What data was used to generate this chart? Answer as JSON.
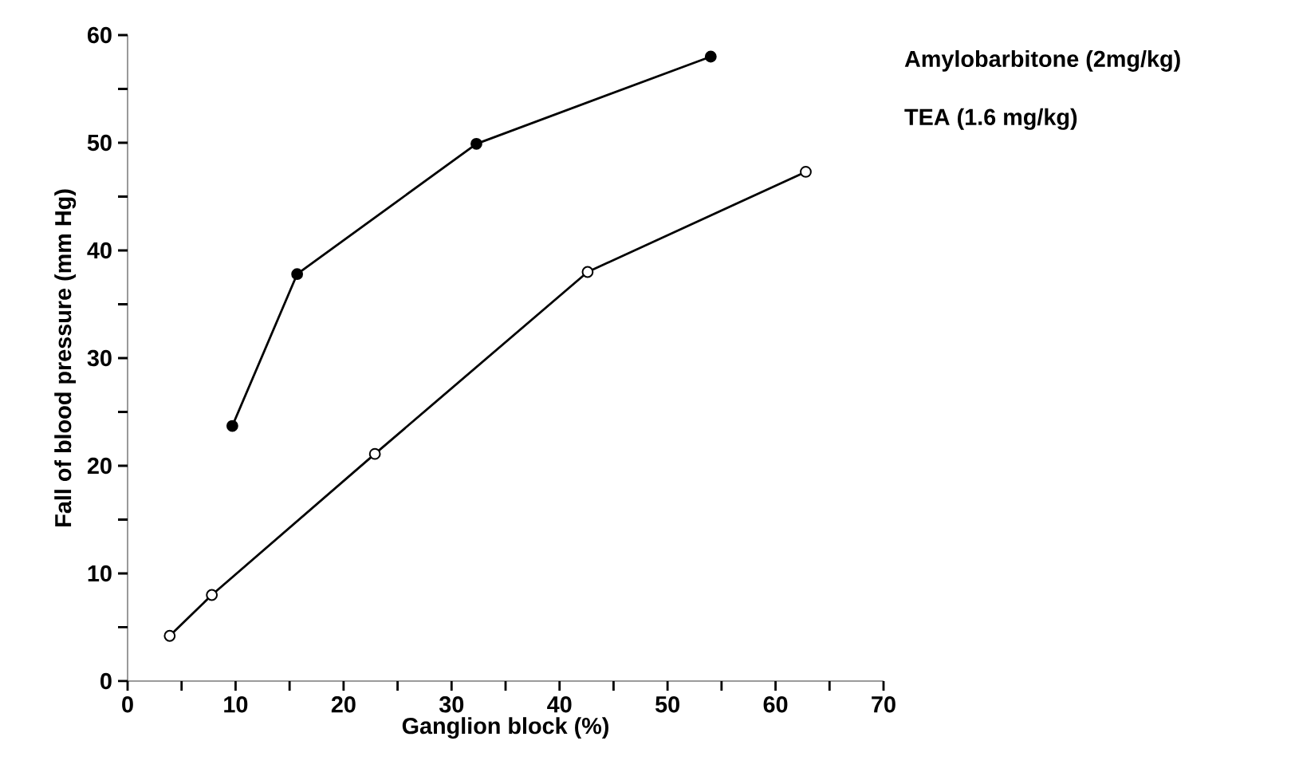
{
  "chart_data": {
    "type": "line",
    "xlabel": "Ganglion block (%)",
    "ylabel": "Fall of blood pressure (mm Hg)",
    "xlim": [
      0,
      70
    ],
    "ylim": [
      0,
      60
    ],
    "xticks": [
      0,
      {
        "value": 5,
        "label": null
      },
      10,
      {
        "value": 15,
        "label": null
      },
      20,
      {
        "value": 25,
        "label": null
      },
      30,
      {
        "value": 35,
        "label": null
      },
      40,
      {
        "value": 45,
        "label": null
      },
      50,
      {
        "value": 55,
        "label": null
      },
      60,
      {
        "value": 65,
        "label": null
      },
      70
    ],
    "yticks": [
      0,
      {
        "value": 5,
        "label": null
      },
      10,
      {
        "value": 15,
        "label": null
      },
      20,
      {
        "value": 25,
        "label": null
      },
      30,
      {
        "value": 35,
        "label": null
      },
      40,
      {
        "value": 45,
        "label": null
      },
      50,
      {
        "value": 55,
        "label": null
      },
      60
    ],
    "marker": "circle",
    "line_style": "solid",
    "grid": false,
    "legend": "right",
    "series": [
      {
        "name": "Amylobarbitone (2mg/kg)",
        "color": "#000000",
        "x": [
          9.7,
          15.7,
          32.3,
          54
        ],
        "values": [
          23.7,
          37.8,
          49.9,
          58
        ]
      },
      {
        "name": "TEA (1.6 mg/kg)",
        "color": "#000000",
        "x": [
          3.9,
          7.8,
          22.9,
          42.6,
          62.8
        ],
        "values": [
          4.2,
          8.0,
          21.1,
          38.0,
          47.3
        ]
      }
    ]
  }
}
